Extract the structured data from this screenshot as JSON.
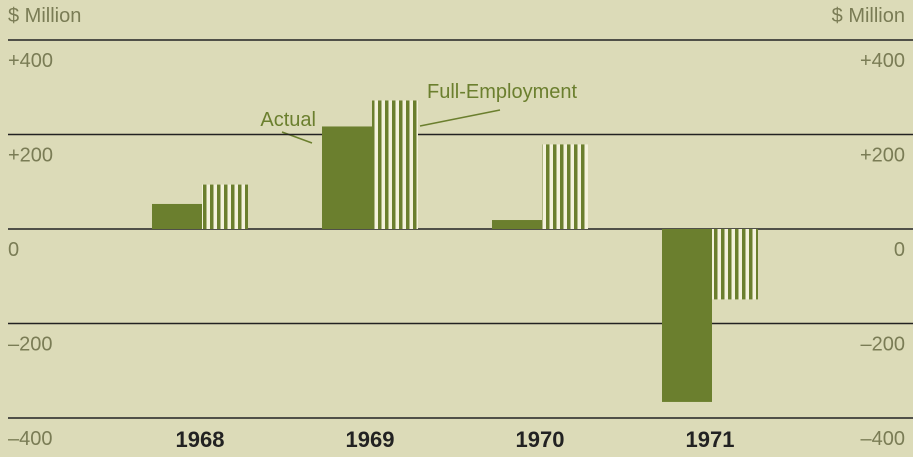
{
  "chart_data": {
    "type": "bar",
    "ylabel": "$ Million",
    "categories": [
      "1968",
      "1969",
      "1970",
      "1971"
    ],
    "series": [
      {
        "name": "Actual",
        "color": "#6b7f2e",
        "values": [
          53,
          217,
          19,
          -366
        ]
      },
      {
        "name": "Full-Employment",
        "color": "#6b7f2e",
        "hatch": "vertical",
        "values": [
          94,
          272,
          179,
          -149
        ]
      }
    ],
    "ylim": [
      -400,
      400
    ],
    "yticks": [
      {
        "value": -400,
        "label": "–400"
      },
      {
        "value": -200,
        "label": "–200"
      },
      0,
      {
        "value": 200,
        "label": "+200"
      },
      {
        "value": 400,
        "label": "+400"
      }
    ],
    "grid": true
  }
}
